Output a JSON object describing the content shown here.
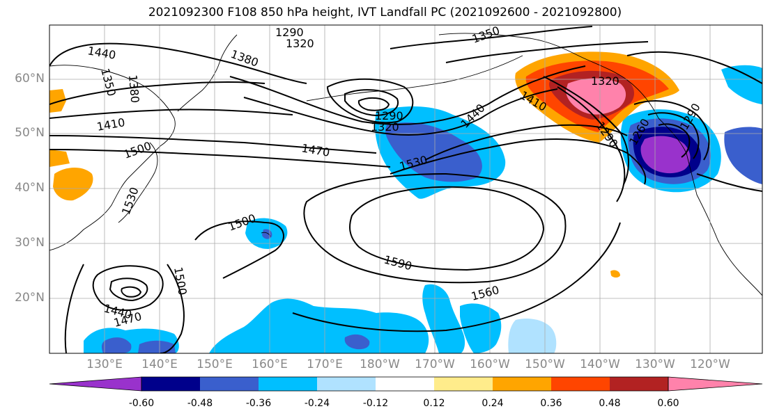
{
  "title": "2021092300 F108 850 hPa height, IVT Landfall PC (2021092600 - 2021092800)",
  "lat_labels": [
    "60°N",
    "50°N",
    "40°N",
    "30°N",
    "20°N"
  ],
  "lon_labels": [
    "130°E",
    "140°E",
    "150°E",
    "160°E",
    "170°E",
    "180°W",
    "170°W",
    "160°W",
    "150°W",
    "140°W",
    "130°W",
    "120°W"
  ],
  "colorbar": {
    "colors": [
      "#9932cc",
      "#00008b",
      "#3a5fcd",
      "#00bfff",
      "#b0e2ff",
      "#ffffff",
      "#ffec8b",
      "#ffa500",
      "#ff4500",
      "#b22222",
      "#ff82ab"
    ],
    "tick_labels": [
      "-0.60",
      "-0.48",
      "-0.36",
      "-0.24",
      "-0.12",
      "0.12",
      "0.24",
      "0.36",
      "0.48",
      "0.60"
    ]
  },
  "contour_labels": [
    "1290",
    "1320",
    "1350",
    "1380",
    "1440",
    "1350",
    "1380",
    "1410",
    "1500",
    "1470",
    "1290",
    "1320",
    "1440",
    "1530",
    "1530",
    "1500",
    "1590",
    "1560",
    "1500",
    "1440",
    "1470",
    "1320",
    "1410",
    "1290",
    "1260",
    "1290"
  ]
}
